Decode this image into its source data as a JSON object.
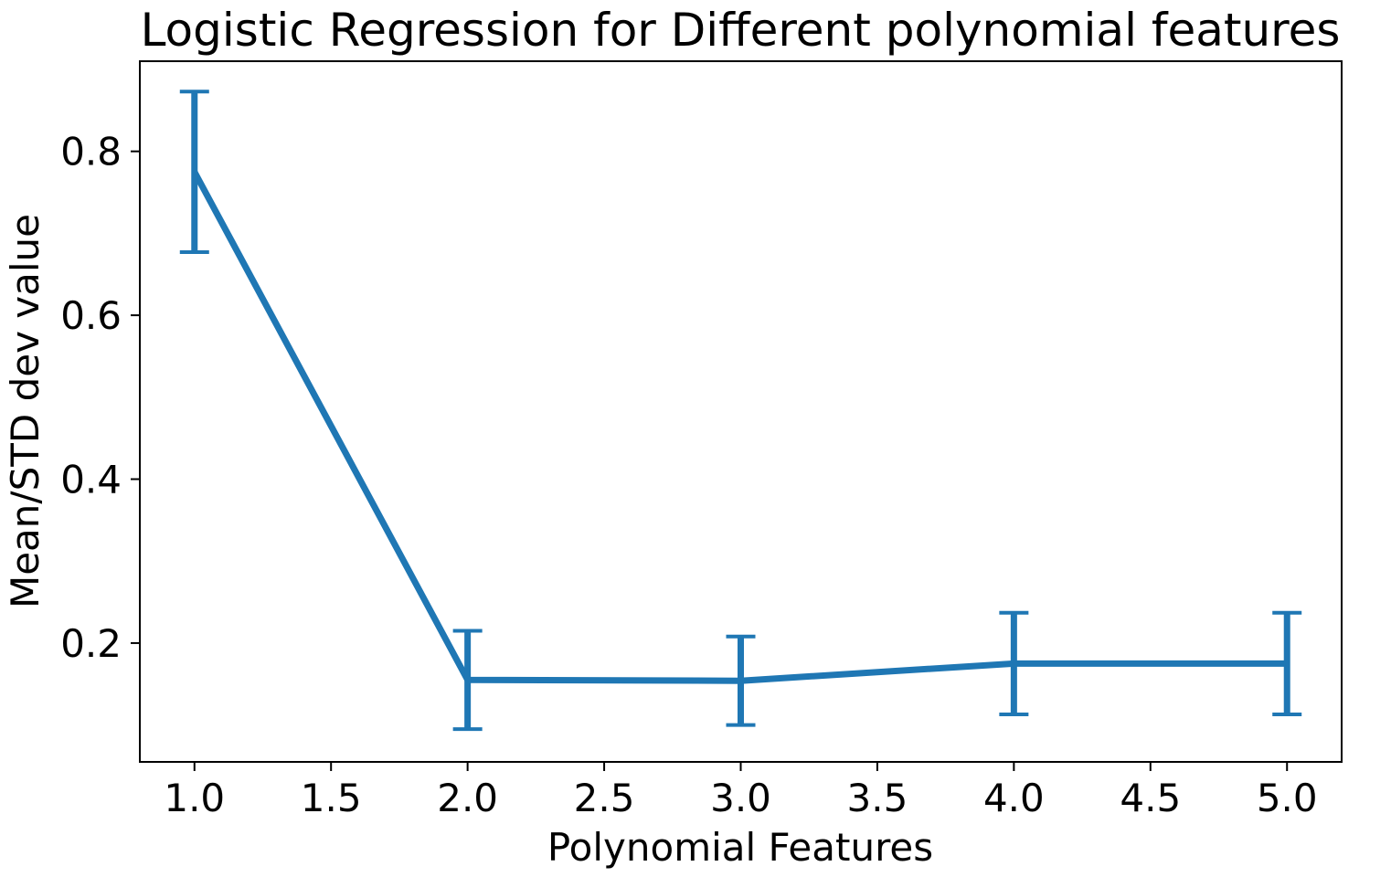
{
  "chart_data": {
    "type": "line",
    "title": "Logistic Regression for Different polynomial features",
    "xlabel": "Polynomial Features",
    "ylabel": "Mean/STD dev value",
    "x": [
      1,
      2,
      3,
      4,
      5
    ],
    "series": [
      {
        "values": [
          0.775,
          0.155,
          0.154,
          0.175,
          0.175
        ],
        "error": [
          0.098,
          0.06,
          0.054,
          0.062,
          0.062
        ],
        "color": "#1f77b4"
      }
    ],
    "xlim": [
      0.8,
      5.2
    ],
    "ylim": [
      0.055,
      0.91
    ],
    "xticks": [
      "1.0",
      "1.5",
      "2.0",
      "2.5",
      "3.0",
      "3.5",
      "4.0",
      "4.5",
      "5.0"
    ],
    "yticks": [
      "0.2",
      "0.4",
      "0.6",
      "0.8"
    ],
    "grid": false,
    "legend": "none"
  }
}
